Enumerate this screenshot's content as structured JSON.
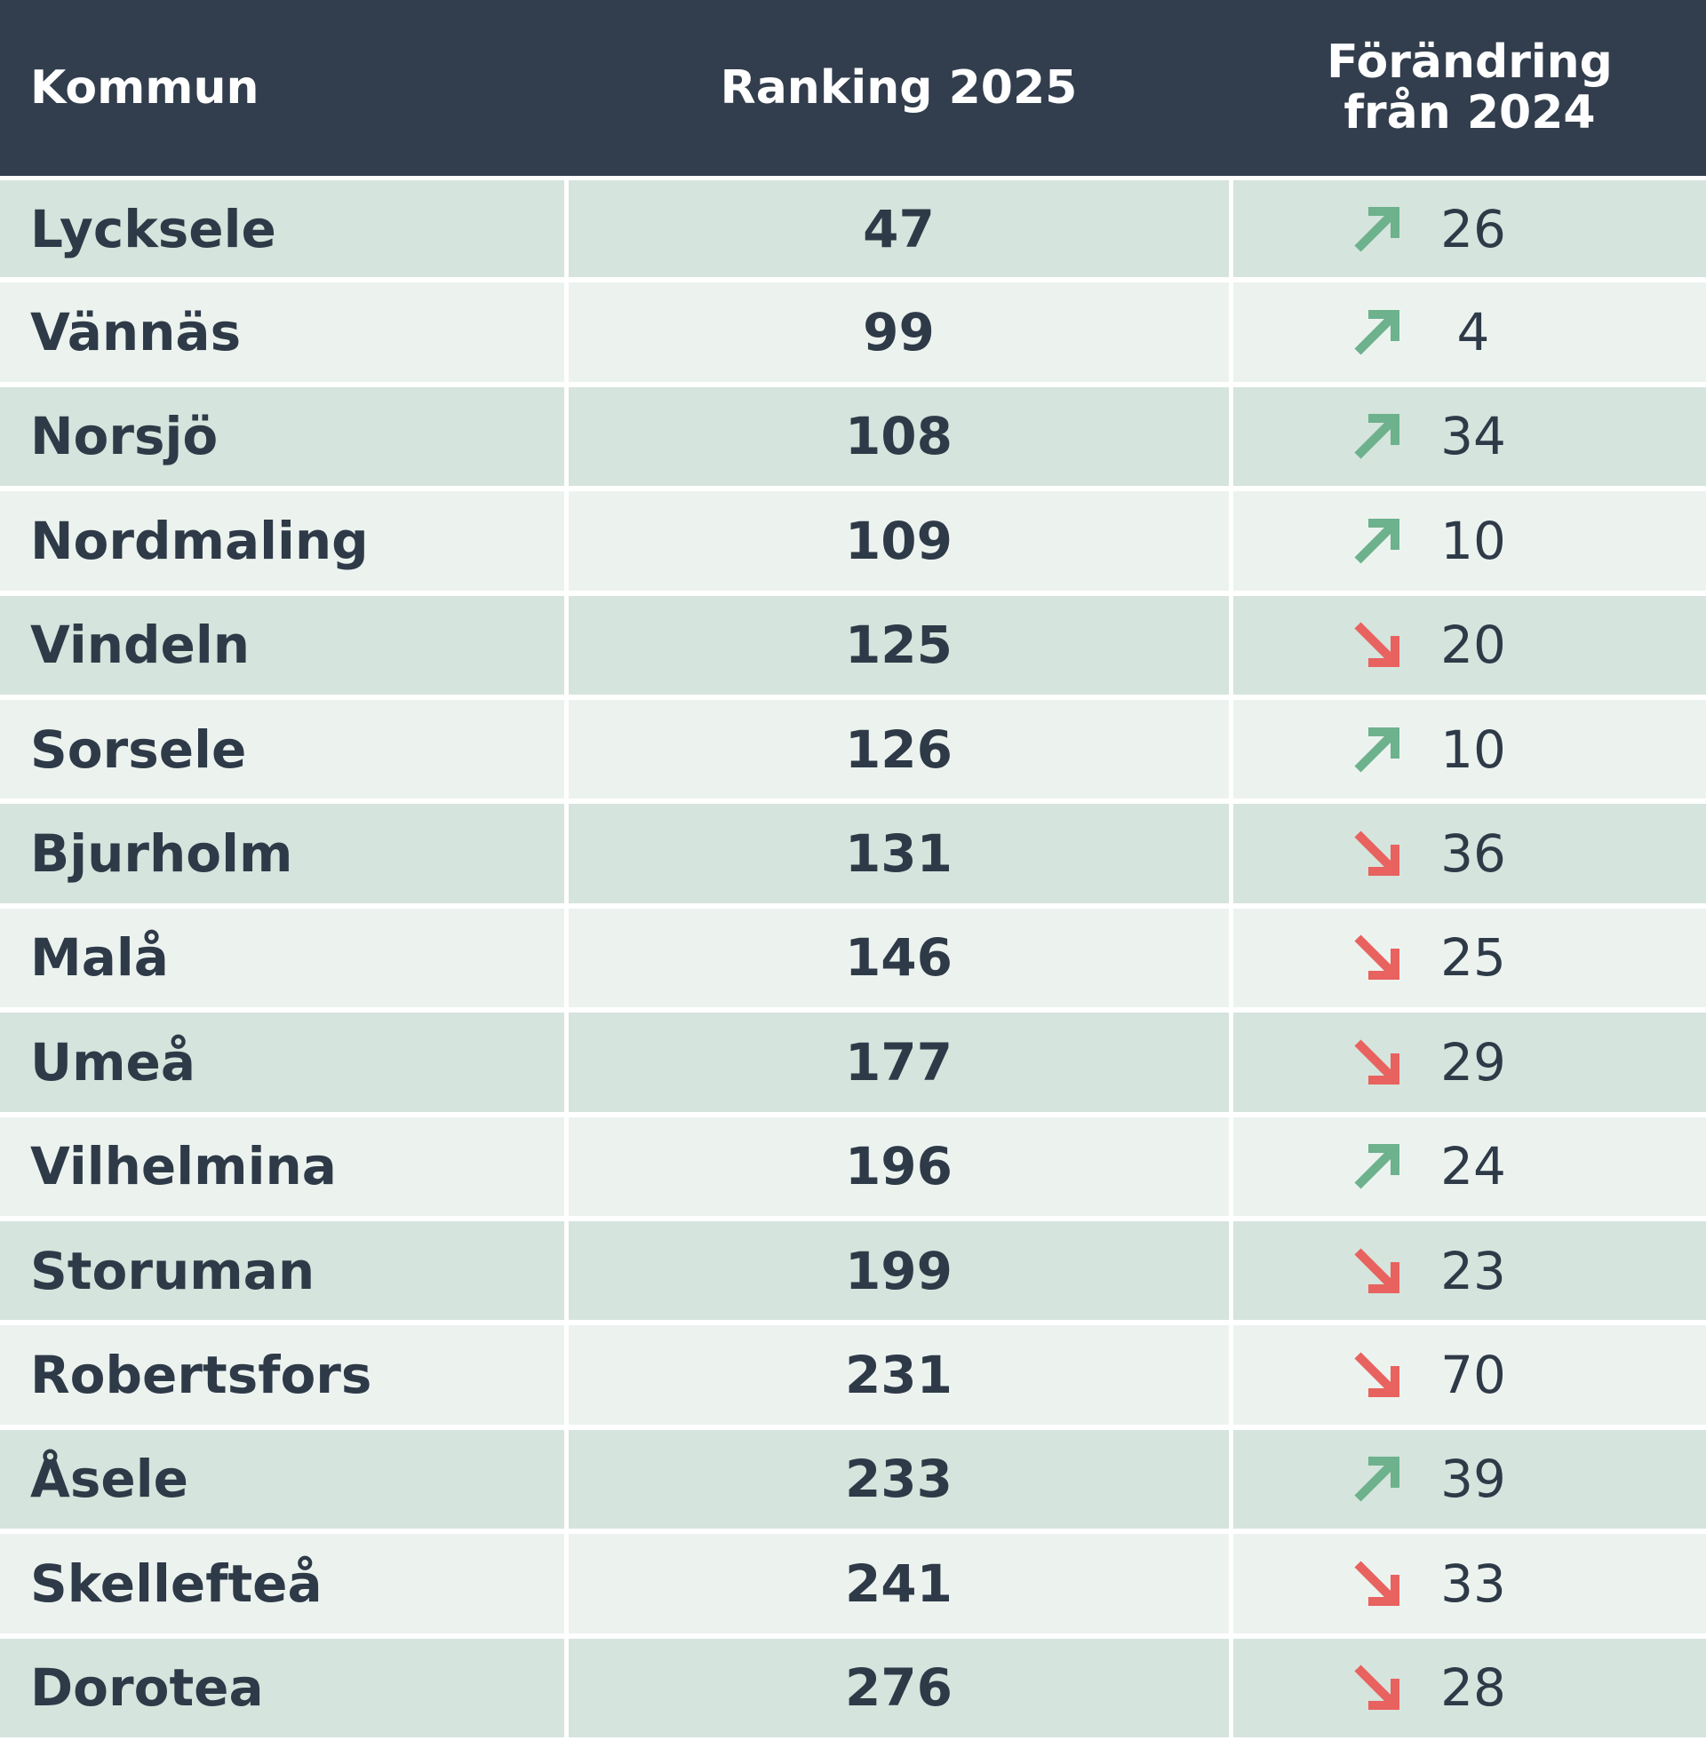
{
  "table": {
    "header": [
      "Kommun",
      "Ranking 2025",
      "Förändring från 2024"
    ],
    "rows": [
      [
        "Lycksele",
        47,
        26,
        "up"
      ],
      [
        "Vännäs",
        99,
        4,
        "up"
      ],
      [
        "Norsjö",
        108,
        34,
        "up"
      ],
      [
        "Nordmaling",
        109,
        10,
        "up"
      ],
      [
        "Vindeln",
        125,
        20,
        "down"
      ],
      [
        "Sorsele",
        126,
        10,
        "up"
      ],
      [
        "Bjurholm",
        131,
        36,
        "down"
      ],
      [
        "Malå",
        146,
        25,
        "down"
      ],
      [
        "Umeå",
        177,
        29,
        "down"
      ],
      [
        "Vilhelmina",
        196,
        24,
        "up"
      ],
      [
        "Storuman",
        199,
        23,
        "down"
      ],
      [
        "Robertsfors",
        231,
        70,
        "down"
      ],
      [
        "Åsele",
        233,
        39,
        "up"
      ],
      [
        "Skellefteå",
        241,
        33,
        "down"
      ],
      [
        "Dorotea",
        276,
        28,
        "down"
      ]
    ]
  }
}
